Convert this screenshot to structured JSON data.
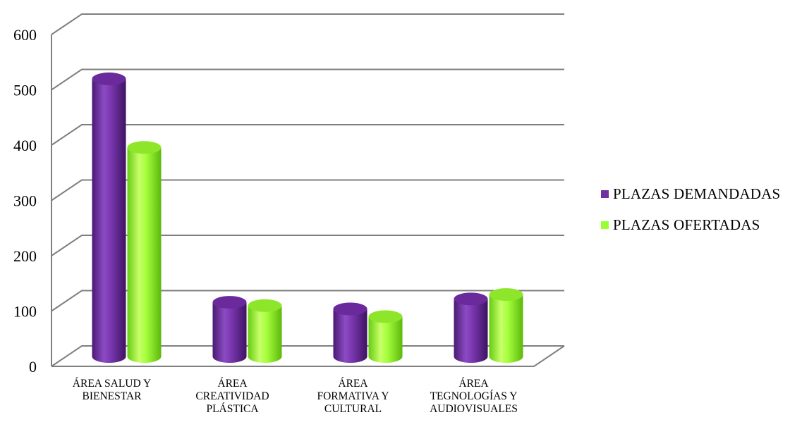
{
  "chart_data": {
    "type": "bar",
    "style": "3d-cylinder",
    "categories": [
      [
        "ÁREA SALUD Y",
        "BIENESTAR"
      ],
      [
        "ÁREA",
        "CREATIVIDAD",
        "PLÁSTICA"
      ],
      [
        "ÁREA",
        "FORMATIVA Y",
        "CULTURAL"
      ],
      [
        "ÁREA",
        "TEGNOLOGÍAS Y",
        "AUDIOVISUALES"
      ]
    ],
    "series": [
      {
        "name": "PLAZAS DEMANDADAS",
        "color": "#7030a0",
        "values": [
          502,
          98,
          86,
          104
        ]
      },
      {
        "name": "PLAZAS OFERTADAS",
        "color": "#99ff33",
        "values": [
          378,
          92,
          72,
          112
        ]
      }
    ],
    "y_ticks": [
      "0",
      "100",
      "200",
      "300",
      "400",
      "500",
      "600"
    ],
    "ylim": [
      0,
      600
    ],
    "grid": true,
    "legend_position": "right"
  }
}
